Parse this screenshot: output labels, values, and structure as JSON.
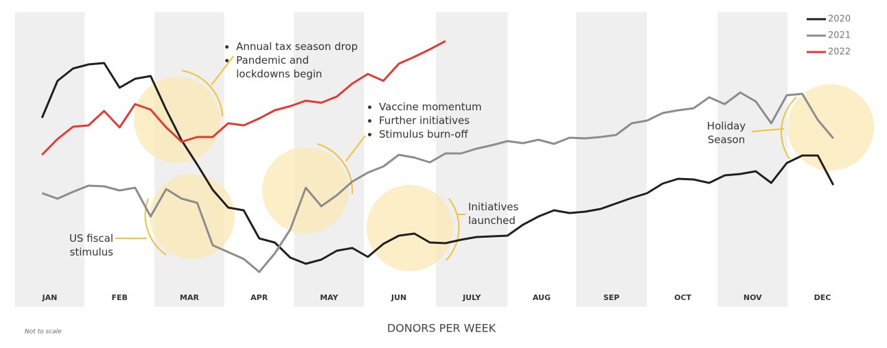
{
  "chart_data": {
    "type": "line",
    "x": [
      1,
      2,
      3,
      4,
      5,
      6,
      7,
      8,
      9,
      10,
      11,
      12,
      13,
      14,
      15,
      16,
      17,
      18,
      19,
      20,
      21,
      22,
      23,
      24,
      25,
      26,
      27,
      28,
      29,
      30,
      31,
      32,
      33,
      34,
      35,
      36,
      37,
      38,
      39,
      40,
      41,
      42,
      43,
      44,
      45,
      46,
      47,
      48,
      49,
      50,
      51,
      52
    ],
    "xlim": [
      -0.6,
      53.6
    ],
    "xticks": [
      {
        "value": 1.5,
        "label": "JAN"
      },
      {
        "value": 6,
        "label": "FEB"
      },
      {
        "value": 10.5,
        "label": "MAR"
      },
      {
        "value": 15,
        "label": "APR"
      },
      {
        "value": 19.5,
        "label": "MAY"
      },
      {
        "value": 24,
        "label": "JUN"
      },
      {
        "value": 28.7,
        "label": "JULY"
      },
      {
        "value": 33.2,
        "label": "AUG"
      },
      {
        "value": 37.7,
        "label": "SEP"
      },
      {
        "value": 42.3,
        "label": "OCT"
      },
      {
        "value": 46.8,
        "label": "NOV"
      },
      {
        "value": 51.3,
        "label": "DEC"
      }
    ],
    "ylim": [
      0,
      340
    ],
    "series": [
      {
        "name": "2020",
        "color": "#1f1f1f",
        "values": [
          228,
          282,
          300,
          306,
          308,
          272,
          285,
          289,
          240,
          195,
          160,
          123,
          97,
          93,
          52,
          46,
          24,
          15,
          21,
          34,
          38,
          25,
          44,
          56,
          59,
          46,
          45,
          50,
          54,
          55,
          56,
          72,
          84,
          93,
          89,
          91,
          95,
          103,
          111,
          118,
          132,
          139,
          138,
          133,
          144,
          146,
          150,
          133,
          162,
          173,
          173,
          130
        ]
      },
      {
        "name": "2021",
        "color": "#8c8c8c",
        "values": [
          118,
          110,
          120,
          129,
          128,
          122,
          126,
          84,
          124,
          110,
          104,
          42,
          32,
          22,
          3,
          30,
          65,
          126,
          99,
          115,
          135,
          148,
          157,
          174,
          170,
          163,
          176,
          176,
          183,
          188,
          194,
          191,
          196,
          190,
          199,
          198,
          200,
          203,
          220,
          224,
          235,
          239,
          242,
          258,
          248,
          265,
          252,
          220,
          261,
          263,
          225,
          198
        ]
      },
      {
        "name": "2022",
        "color": "#e03a32",
        "values": [
          174,
          197,
          215,
          217,
          238,
          214,
          248,
          240,
          214,
          193,
          200,
          200,
          220,
          217,
          227,
          239,
          245,
          253,
          250,
          259,
          278,
          292,
          282,
          307,
          317,
          328,
          340,
          null,
          null,
          null,
          null,
          null,
          null,
          null,
          null,
          null,
          null,
          null,
          null,
          null,
          null,
          null,
          null,
          null,
          null,
          null,
          null,
          null,
          null,
          null,
          null,
          null
        ]
      }
    ],
    "legend": "top-right",
    "x_label": "DONORS PER WEEK",
    "note": "Not to scale",
    "annotations": [
      {
        "items": [
          "Annual tax season drop",
          "Pandemic and lockdowns begin"
        ]
      },
      {
        "items": [
          "Vaccine momentum",
          "Further initiatives",
          "Stimulus burn-off"
        ]
      },
      {
        "text": "Initiatives launched"
      },
      {
        "text": "US fiscal stimulus"
      },
      {
        "text": "Holiday Season"
      }
    ]
  }
}
